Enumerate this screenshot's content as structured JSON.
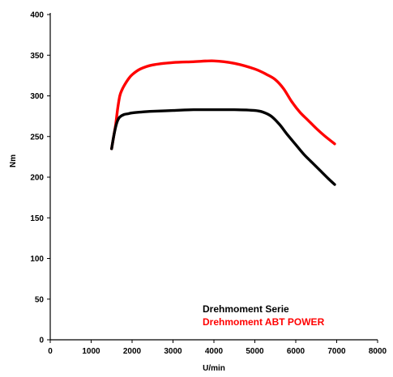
{
  "chart_data": {
    "type": "line",
    "xlabel": "U/min",
    "ylabel": "Nm",
    "xlim": [
      0,
      8000
    ],
    "ylim": [
      0,
      400
    ],
    "xticks": [
      "0",
      "1000",
      "2000",
      "3000",
      "4000",
      "5000",
      "6000",
      "7000",
      "8000"
    ],
    "yticks": [
      "0",
      "50",
      "100",
      "150",
      "200",
      "250",
      "300",
      "350",
      "400"
    ],
    "grid": false,
    "legend_position": "bottom-right",
    "series": [
      {
        "name": "Drehmoment Serie",
        "color": "#000000",
        "x": [
          1500,
          1550,
          1600,
          1650,
          1700,
          1800,
          1900,
          2000,
          2200,
          2500,
          3000,
          3500,
          4000,
          4500,
          5000,
          5200,
          5400,
          5600,
          5800,
          6000,
          6200,
          6400,
          6600,
          6800,
          6950
        ],
        "y": [
          235,
          250,
          262,
          270,
          274,
          277,
          278,
          279,
          280,
          281,
          282,
          283,
          283,
          283,
          282,
          280,
          275,
          265,
          252,
          240,
          228,
          218,
          208,
          198,
          191
        ]
      },
      {
        "name": "Drehmoment ABT POWER",
        "color": "#ff0000",
        "x": [
          1500,
          1550,
          1600,
          1650,
          1700,
          1750,
          1800,
          1900,
          2000,
          2200,
          2500,
          3000,
          3500,
          4000,
          4500,
          5000,
          5300,
          5500,
          5700,
          5900,
          6100,
          6300,
          6500,
          6700,
          6950
        ],
        "y": [
          235,
          250,
          265,
          285,
          300,
          307,
          312,
          320,
          326,
          333,
          338,
          341,
          342,
          343,
          340,
          333,
          326,
          320,
          309,
          293,
          280,
          270,
          260,
          251,
          241
        ]
      }
    ]
  }
}
